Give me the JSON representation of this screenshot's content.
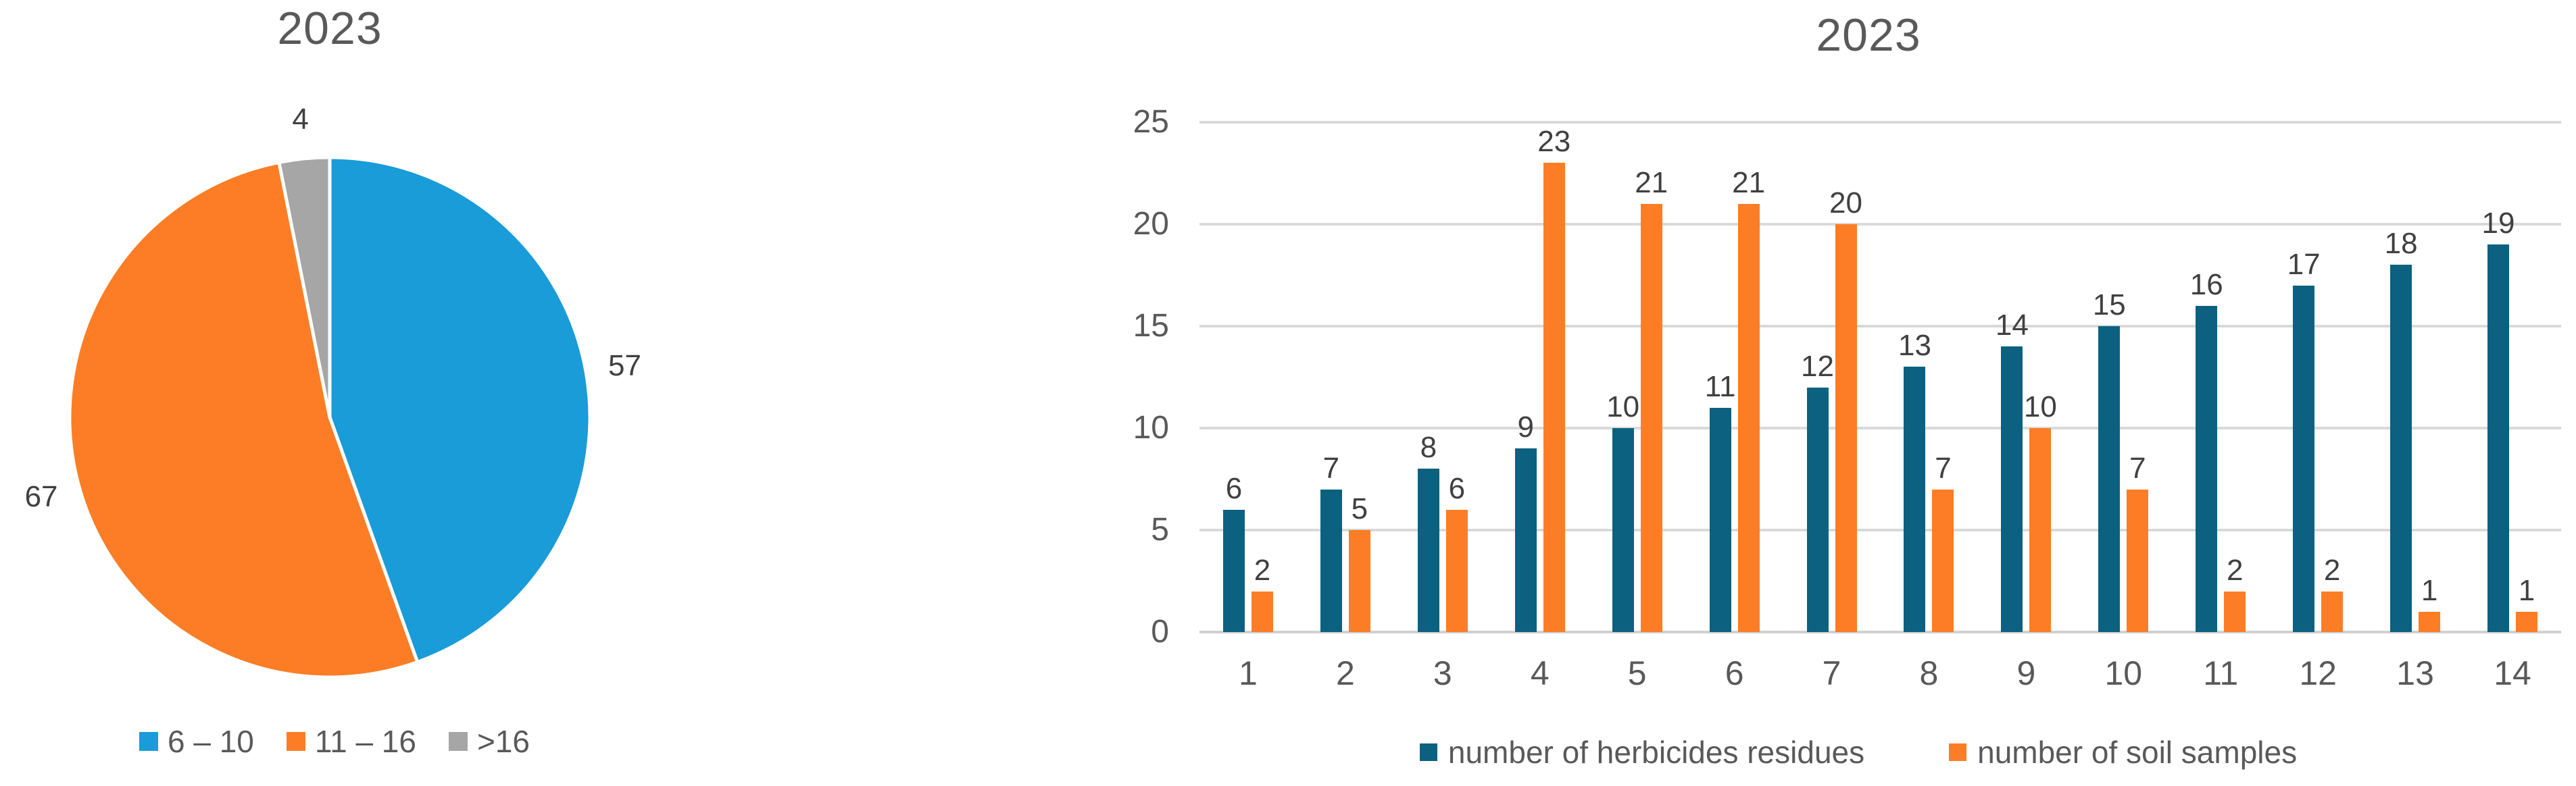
{
  "chart_data": [
    {
      "type": "pie",
      "title": "2023",
      "slices": [
        {
          "label": "6 – 10",
          "value": 57,
          "color": "#199CD8"
        },
        {
          "label": "11 – 16",
          "value": 67,
          "color": "#FC7D25"
        },
        {
          "label": ">16",
          "value": 4,
          "color": "#A6A6A6"
        }
      ],
      "start_angle_deg": 0,
      "direction": "clockwise",
      "data_labels": "outside",
      "legend_position": "bottom"
    },
    {
      "type": "bar",
      "title": "2023",
      "categories": [
        "1",
        "2",
        "3",
        "4",
        "5",
        "6",
        "7",
        "8",
        "9",
        "10",
        "11",
        "12",
        "13",
        "14"
      ],
      "series": [
        {
          "name": "number of herbicides residues",
          "color": "#0B617F",
          "values": [
            6,
            7,
            8,
            9,
            10,
            11,
            12,
            13,
            14,
            15,
            16,
            17,
            18,
            19
          ]
        },
        {
          "name": "number of soil samples",
          "color": "#FC7D25",
          "values": [
            2,
            5,
            6,
            23,
            21,
            21,
            20,
            7,
            10,
            7,
            2,
            2,
            1,
            1
          ]
        }
      ],
      "xlabel": "",
      "ylabel": "",
      "ylim": [
        0,
        25
      ],
      "yticks": [
        0,
        5,
        10,
        15,
        20,
        25
      ],
      "grid": true,
      "legend_position": "bottom"
    }
  ]
}
